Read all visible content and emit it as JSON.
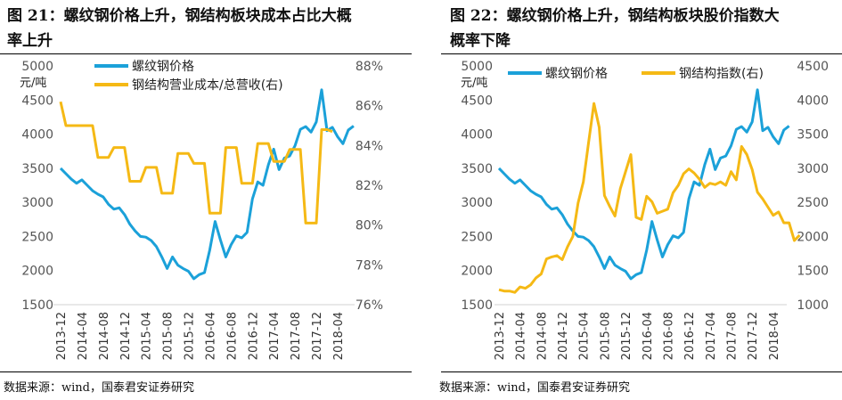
{
  "charts_meta": [
    {
      "title": "图 21：螺纹钢价格上升，钢结构板块成本占比大概率上升",
      "title_line1": "图 21：螺纹钢价格上升，钢结构板块成本占比大概",
      "title_line2": "率上升",
      "source": "数据来源：wind，国泰君安证券研究"
    },
    {
      "title": "图 22：螺纹钢价格上升，钢结构板块股价指数大概率下降",
      "title_line1": "图 22：螺纹钢价格上升，钢结构板块股价指数大",
      "title_line2": "概率下降",
      "source": "数据来源：wind，国泰君安证券研究"
    }
  ],
  "colors": {
    "blue": "#1BA1D9",
    "yellow": "#F5B915",
    "axis_text": "#555555",
    "axis_line": "#D0D0D0"
  },
  "chart_data": [
    {
      "type": "line",
      "title": "图 21：螺纹钢价格上升，钢结构板块成本占比大概率上升",
      "ylabel": "元/吨",
      "ylim": [
        1500,
        5000
      ],
      "y_ticks": [
        "5000",
        "4500",
        "4000",
        "3500",
        "3000",
        "2500",
        "2000",
        "1500"
      ],
      "y2lim": [
        76,
        88
      ],
      "y2_ticks": [
        "88%",
        "86%",
        "84%",
        "82%",
        "80%",
        "78%",
        "76%"
      ],
      "x_ticks": [
        "2013-12",
        "2014-04",
        "2014-08",
        "2014-12",
        "2015-04",
        "2015-08",
        "2015-12",
        "2016-04",
        "2016-08",
        "2016-12",
        "2017-04",
        "2017-08",
        "2017-12",
        "2018-04"
      ],
      "legend": [
        "螺纹钢价格",
        "钢结构营业成本/总营收(右)"
      ],
      "legend_position": "top-left",
      "grid": false,
      "series": [
        {
          "name": "螺纹钢价格",
          "axis": "left",
          "start": "2013-12",
          "values": [
            3500,
            3420,
            3340,
            3280,
            3330,
            3250,
            3170,
            3120,
            3080,
            2970,
            2900,
            2920,
            2820,
            2680,
            2580,
            2500,
            2490,
            2440,
            2350,
            2200,
            2030,
            2200,
            2080,
            2030,
            1990,
            1880,
            1940,
            1970,
            2300,
            2720,
            2450,
            2200,
            2380,
            2510,
            2480,
            2560,
            3050,
            3300,
            3250,
            3550,
            3780,
            3480,
            3650,
            3680,
            3830,
            4070,
            4110,
            4030,
            4180,
            4650,
            4050,
            4100,
            3960,
            3860,
            4060,
            4120
          ]
        },
        {
          "name": "钢结构营业成本/总营收(右)",
          "axis": "right",
          "start": "2013-12",
          "values": [
            86.2,
            85.0,
            85.0,
            85.0,
            85.0,
            85.0,
            85.0,
            83.4,
            83.4,
            83.4,
            83.9,
            83.9,
            83.9,
            82.2,
            82.2,
            82.2,
            82.9,
            82.9,
            82.9,
            81.6,
            81.6,
            81.6,
            83.6,
            83.6,
            83.6,
            83.1,
            83.1,
            83.1,
            80.6,
            80.6,
            80.6,
            83.9,
            83.9,
            83.9,
            82.1,
            82.1,
            82.1,
            84.1,
            84.1,
            84.1,
            83.2,
            83.2,
            83.2,
            83.8,
            83.8,
            83.8,
            80.1,
            80.1,
            80.1,
            84.8,
            84.8,
            84.7
          ]
        }
      ]
    },
    {
      "type": "line",
      "title": "图 22：螺纹钢价格上升，钢结构板块股价指数大概率下降",
      "ylabel": "元/吨",
      "ylim": [
        1500,
        5000
      ],
      "y_ticks": [
        "5000",
        "4500",
        "4000",
        "3500",
        "3000",
        "2500",
        "2000",
        "1500"
      ],
      "y2lim": [
        1000,
        4500
      ],
      "y2_ticks": [
        "4500",
        "4000",
        "3500",
        "3000",
        "2500",
        "2000",
        "1500",
        "1000"
      ],
      "x_ticks": [
        "2013-12",
        "2014-04",
        "2014-08",
        "2014-12",
        "2015-04",
        "2015-08",
        "2015-12",
        "2016-04",
        "2016-08",
        "2016-12",
        "2017-04",
        "2017-08",
        "2017-12",
        "2018-04"
      ],
      "legend": [
        "螺纹钢价格",
        "钢结构指数(右)"
      ],
      "legend_position": "top",
      "grid": false,
      "series": [
        {
          "name": "螺纹钢价格",
          "axis": "left",
          "start": "2013-12",
          "values": [
            3500,
            3420,
            3340,
            3280,
            3330,
            3250,
            3170,
            3120,
            3080,
            2970,
            2900,
            2920,
            2820,
            2680,
            2580,
            2500,
            2490,
            2440,
            2350,
            2200,
            2030,
            2200,
            2080,
            2030,
            1990,
            1880,
            1940,
            1970,
            2300,
            2720,
            2450,
            2200,
            2380,
            2510,
            2480,
            2560,
            3050,
            3300,
            3250,
            3550,
            3780,
            3480,
            3650,
            3680,
            3830,
            4070,
            4110,
            4030,
            4180,
            4650,
            4050,
            4100,
            3960,
            3860,
            4060,
            4120
          ]
        },
        {
          "name": "钢结构指数(右)",
          "axis": "right",
          "start": "2013-12",
          "values": [
            1220,
            1200,
            1200,
            1180,
            1260,
            1240,
            1290,
            1390,
            1450,
            1670,
            1700,
            1720,
            1660,
            1850,
            2000,
            2490,
            2800,
            3380,
            3950,
            3600,
            2600,
            2440,
            2300,
            2700,
            2950,
            3200,
            2280,
            2250,
            2590,
            2510,
            2340,
            2370,
            2400,
            2640,
            2750,
            2920,
            2990,
            2930,
            2840,
            2720,
            2780,
            2760,
            2800,
            2750,
            2950,
            2830,
            3320,
            3200,
            2980,
            2650,
            2550,
            2430,
            2310,
            2360,
            2200,
            2200,
            1940,
            2020
          ]
        }
      ]
    }
  ]
}
